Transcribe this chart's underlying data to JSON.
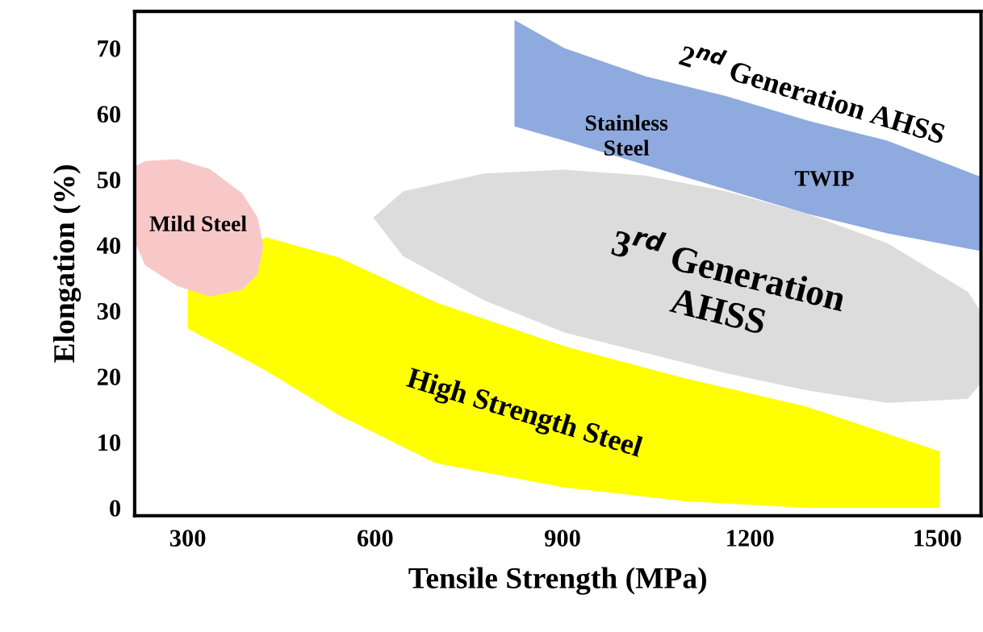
{
  "chart_data": {
    "type": "area",
    "xlabel": "Tensile Strength (MPa)",
    "ylabel": "Elongation (%)",
    "xlim": [
      215,
      1570
    ],
    "ylim": [
      -1.2,
      75.6
    ],
    "xticks": [
      300,
      600,
      900,
      1200,
      1500
    ],
    "yticks": [
      0,
      10,
      20,
      30,
      40,
      50,
      60,
      70
    ],
    "grid": false,
    "legend": false,
    "series": [
      {
        "color": "#ffff00",
        "x": [
          300,
          425,
          542,
          697,
          903,
          1097,
          1291,
          1504,
          1504,
          1291,
          1097,
          903,
          697,
          542,
          425,
          300
        ],
        "values": [
          33.2,
          41.2,
          38.1,
          31.3,
          24.6,
          19.7,
          15.4,
          8.6,
          0,
          0,
          1.0,
          3.1,
          6.8,
          14.1,
          20.9,
          27.3
        ]
      },
      {
        "color": "#8eaadf",
        "x": [
          823,
          903,
          1033,
          1162,
          1291,
          1420,
          1570,
          1570,
          1420,
          1291,
          1162,
          1033,
          903,
          823
        ],
        "values": [
          74.3,
          70,
          65.7,
          62.7,
          59,
          55.9,
          50.4,
          39.1,
          41.8,
          44.8,
          48.5,
          52.2,
          55.9,
          58.1
        ]
      },
      {
        "color": "#dcdcdc",
        "x": [
          597,
          645,
          774,
          903,
          1033,
          1162,
          1291,
          1420,
          1549,
          1570,
          1570,
          1549,
          1420,
          1291,
          1162,
          1033,
          903,
          774,
          645
        ],
        "values": [
          44.2,
          48.2,
          50.9,
          51.5,
          50.6,
          48.2,
          44.8,
          40.3,
          32.9,
          29.8,
          19.0,
          16.6,
          16.0,
          17.9,
          20.5,
          23.6,
          26.7,
          31.6,
          38.3
        ]
      },
      {
        "color": "#f8c8c8",
        "x": [
          215,
          232,
          283,
          335,
          387,
          412,
          421,
          412,
          387,
          335,
          283,
          232,
          215
        ],
        "values": [
          52.0,
          52.8,
          53.1,
          51.6,
          47.9,
          44.2,
          39.9,
          35.6,
          33.2,
          32.2,
          33.8,
          36.9,
          40.5
        ]
      }
    ],
    "annotations": [
      "Mild Steel",
      "High Strength Steel",
      "3$^{rd}$ Generation\nAHSS",
      "2$^{nd}$ Generation AHSS",
      "Stainless\nSteel",
      "TWIP"
    ]
  }
}
